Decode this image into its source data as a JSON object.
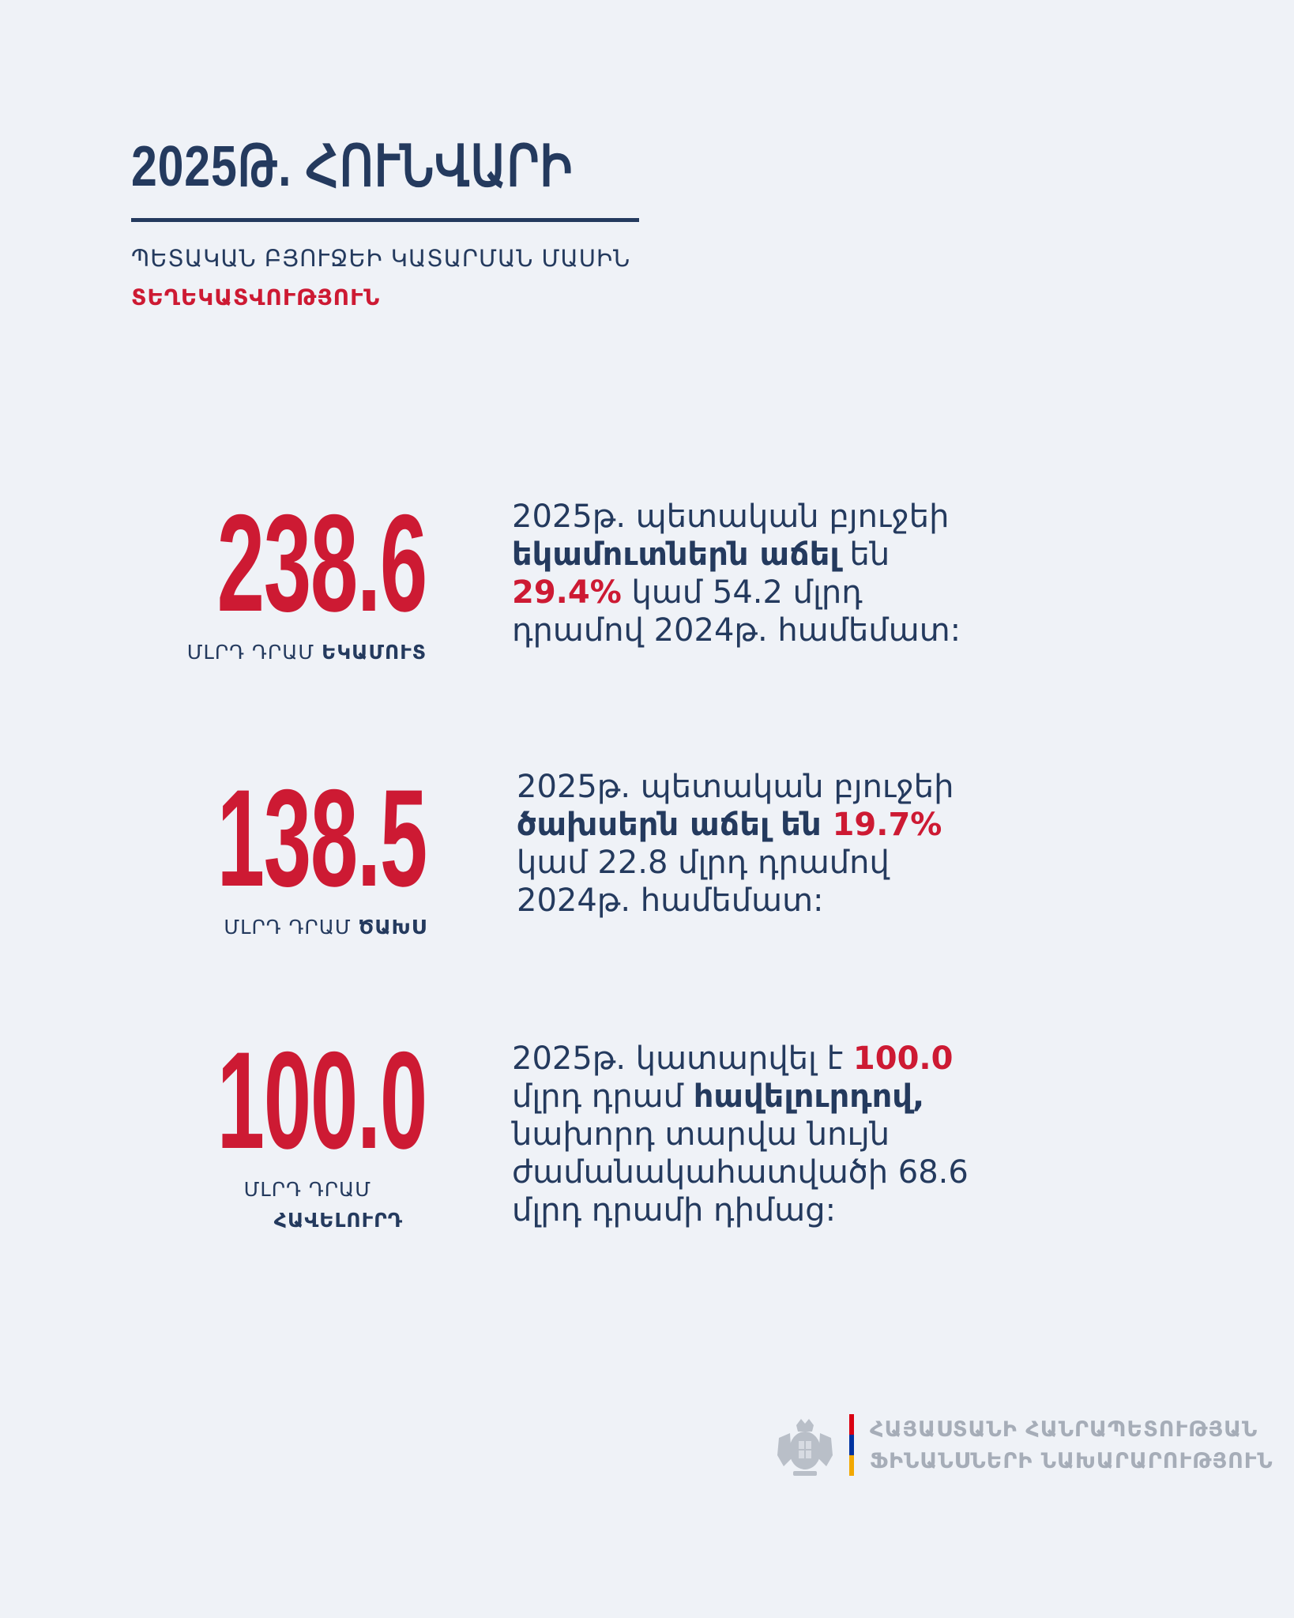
{
  "header": {
    "title": "2025Թ. ՀՈՒՆՎԱՐԻ",
    "subtitle": "ՊԵՏԱԿԱՆ ԲՅՈՒՋԵԻ ԿԱՏԱՐՄԱՆ ՄԱՍԻՆ",
    "subtitle_accent": "ՏԵՂԵԿԱՏՎՈՒԹՅՈՒՆ"
  },
  "stats": [
    {
      "value": "238.6",
      "unit": "ՄԼՐԴ ԴՐԱՄ",
      "unit_bold": "ԵԿԱՄՈՒՏ",
      "desc": {
        "a": "2025թ. պետական բյուջեի",
        "b_bold": "եկամուտներն աճել",
        "b_rest": " են",
        "c_red": "29.4%",
        "c_rest": " կամ 54.2 մլրդ",
        "d": "դրամով 2024թ. համեմատ:"
      }
    },
    {
      "value": "138.5",
      "unit": "ՄԼՐԴ ԴՐԱՄ",
      "unit_bold": "ԾԱԽՍ",
      "desc": {
        "a": "2025թ. պետական բյուջեի",
        "b_bold": "ծախսերն աճել են",
        "b_red": " 19.7%",
        "c": "կամ 22.8 մլրդ դրամով",
        "d": "2024թ. համեմատ:"
      }
    },
    {
      "value": "100.0",
      "unit": "ՄԼՐԴ ԴՐԱՄ",
      "unit_bold": "ՀԱՎԵԼՈՒՐԴ",
      "desc": {
        "a": "2025թ. կատարվել է ",
        "a_red": "100.0",
        "b": "մլրդ դրամ ",
        "b_bold": "հավելուրդով,",
        "c": "նախորդ տարվա նույն",
        "d": "ժամանակահատվածի 68.6",
        "e": "մլրդ դրամի դիմաց:"
      }
    }
  ],
  "footer": {
    "org_line1": "ՀԱՅԱՍՏԱՆԻ ՀԱՆՐԱՊԵՏՈՒԹՅԱՆ",
    "org_line2": "ՖԻՆԱՆՍՆԵՐԻ ՆԱԽԱՐԱՐՈՒԹՅՈՒՆ",
    "emblem": "coat-of-arms-icon",
    "flag_colors": [
      "#d90012",
      "#0033a0",
      "#f2a800"
    ]
  },
  "colors": {
    "background": "#eff2f7",
    "navy": "#243a5e",
    "red": "#cd1a33"
  }
}
